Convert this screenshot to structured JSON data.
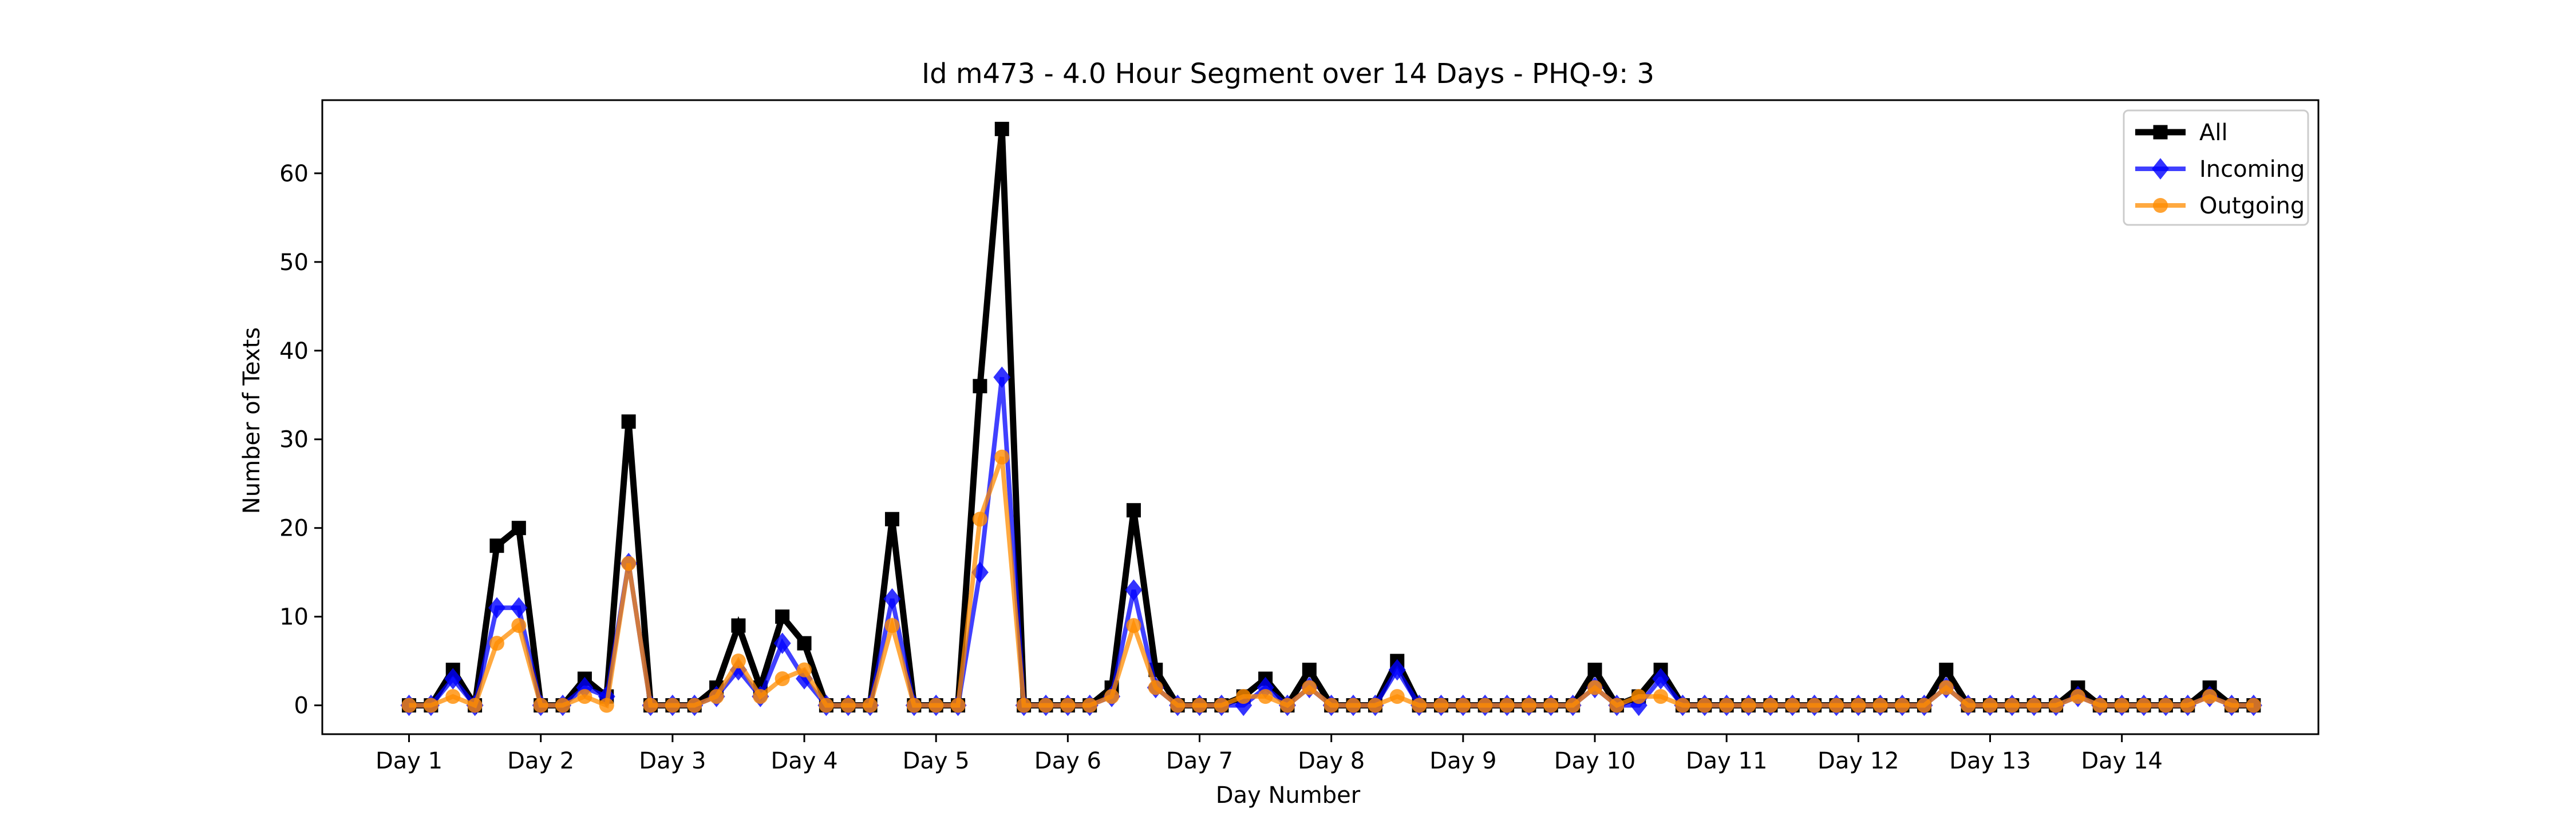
{
  "chart_data": {
    "type": "line",
    "title": "Id m473 - 4.0 Hour Segment over 14 Days - PHQ-9: 3",
    "xlabel": "Day Number",
    "ylabel": "Number of Texts",
    "ylim": [
      -3.25,
      68.25
    ],
    "xlim": [
      -3.95,
      86.95
    ],
    "y_ticks": [
      0,
      10,
      20,
      30,
      40,
      50,
      60
    ],
    "x_ticks": [
      {
        "value": 0,
        "label": "Day 1"
      },
      {
        "value": 6,
        "label": "Day 2"
      },
      {
        "value": 12,
        "label": "Day 3"
      },
      {
        "value": 18,
        "label": "Day 4"
      },
      {
        "value": 24,
        "label": "Day 5"
      },
      {
        "value": 30,
        "label": "Day 6"
      },
      {
        "value": 36,
        "label": "Day 7"
      },
      {
        "value": 42,
        "label": "Day 8"
      },
      {
        "value": 48,
        "label": "Day 9"
      },
      {
        "value": 54,
        "label": "Day 10"
      },
      {
        "value": 60,
        "label": "Day 11"
      },
      {
        "value": 66,
        "label": "Day 12"
      },
      {
        "value": 72,
        "label": "Day 13"
      },
      {
        "value": 78,
        "label": "Day 14"
      }
    ],
    "grid": false,
    "legend_position": "top-right",
    "series": [
      {
        "name": "All",
        "color": "#000000",
        "marker": "square",
        "values": [
          0,
          0,
          4,
          0,
          18,
          20,
          0,
          0,
          3,
          1,
          32,
          0,
          0,
          0,
          2,
          9,
          2,
          10,
          7,
          0,
          0,
          0,
          21,
          0,
          0,
          0,
          36,
          65,
          0,
          0,
          0,
          0,
          2,
          22,
          4,
          0,
          0,
          0,
          1,
          3,
          0,
          4,
          0,
          0,
          0,
          5,
          0,
          0,
          0,
          0,
          0,
          0,
          0,
          0,
          4,
          0,
          1,
          4,
          0,
          0,
          0,
          0,
          0,
          0,
          0,
          0,
          0,
          0,
          0,
          0,
          4,
          0,
          0,
          0,
          0,
          0,
          2,
          0,
          0,
          0,
          0,
          0,
          2,
          0,
          0
        ]
      },
      {
        "name": "Incoming",
        "color": "#0000ff",
        "marker": "diamond",
        "values": [
          0,
          0,
          3,
          0,
          11,
          11,
          0,
          0,
          2,
          1,
          16,
          0,
          0,
          0,
          1,
          4,
          1,
          7,
          3,
          0,
          0,
          0,
          12,
          0,
          0,
          0,
          15,
          37,
          0,
          0,
          0,
          0,
          1,
          13,
          2,
          0,
          0,
          0,
          0,
          2,
          0,
          2,
          0,
          0,
          0,
          4,
          0,
          0,
          0,
          0,
          0,
          0,
          0,
          0,
          2,
          0,
          0,
          3,
          0,
          0,
          0,
          0,
          0,
          0,
          0,
          0,
          0,
          0,
          0,
          0,
          2,
          0,
          0,
          0,
          0,
          0,
          1,
          0,
          0,
          0,
          0,
          0,
          1,
          0,
          0
        ]
      },
      {
        "name": "Outgoing",
        "color": "#ff8c00",
        "marker": "circle",
        "values": [
          0,
          0,
          1,
          0,
          7,
          9,
          0,
          0,
          1,
          0,
          16,
          0,
          0,
          0,
          1,
          5,
          1,
          3,
          4,
          0,
          0,
          0,
          9,
          0,
          0,
          0,
          21,
          28,
          0,
          0,
          0,
          0,
          1,
          9,
          2,
          0,
          0,
          0,
          1,
          1,
          0,
          2,
          0,
          0,
          0,
          1,
          0,
          0,
          0,
          0,
          0,
          0,
          0,
          0,
          2,
          0,
          1,
          1,
          0,
          0,
          0,
          0,
          0,
          0,
          0,
          0,
          0,
          0,
          0,
          0,
          2,
          0,
          0,
          0,
          0,
          0,
          1,
          0,
          0,
          0,
          0,
          0,
          1,
          0,
          0
        ]
      }
    ]
  }
}
